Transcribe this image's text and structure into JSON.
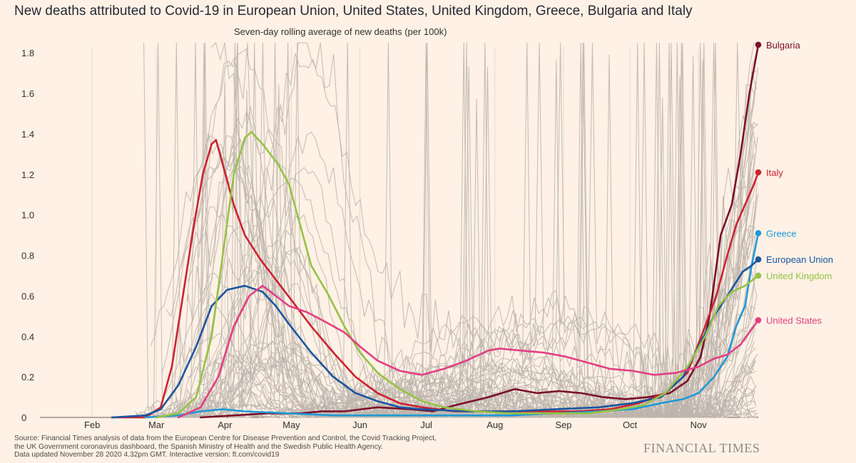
{
  "chart_data": {
    "type": "line",
    "title": "New deaths attributed to Covid-19 in European Union, United States, United Kingdom, Greece, Bulgaria and Italy",
    "subtitle": "Seven-day rolling average of new deaths (per 100k)",
    "xlabel": "",
    "ylabel": "",
    "x_ticks": [
      "Feb",
      "Mar",
      "Apr",
      "May",
      "Jun",
      "Jul",
      "Aug",
      "Sep",
      "Oct",
      "Nov"
    ],
    "x_tick_days": [
      31,
      60,
      91,
      121,
      152,
      182,
      213,
      244,
      274,
      305
    ],
    "x_range_days": [
      0,
      332
    ],
    "ylim": [
      0,
      1.85
    ],
    "y_ticks": [
      0,
      0.2,
      0.4,
      0.6,
      0.8,
      1.0,
      1.2,
      1.4,
      1.6,
      1.8
    ],
    "y_tick_labels": [
      "0",
      "0.2",
      "0.4",
      "0.6",
      "0.8",
      "1.0",
      "1.2",
      "1.4",
      "1.6",
      "1.8"
    ],
    "grid": "vertical",
    "legend": "end-of-line labels",
    "background_series_color": "#bdb5ad",
    "series": [
      {
        "name": "Bulgaria",
        "color": "#7a0f2b",
        "points": [
          [
            80,
            0
          ],
          [
            95,
            0.01
          ],
          [
            110,
            0.02
          ],
          [
            125,
            0.02
          ],
          [
            135,
            0.03
          ],
          [
            145,
            0.03
          ],
          [
            160,
            0.05
          ],
          [
            175,
            0.04
          ],
          [
            185,
            0.03
          ],
          [
            195,
            0.06
          ],
          [
            210,
            0.1
          ],
          [
            222,
            0.14
          ],
          [
            232,
            0.12
          ],
          [
            242,
            0.13
          ],
          [
            252,
            0.12
          ],
          [
            262,
            0.1
          ],
          [
            272,
            0.09
          ],
          [
            282,
            0.1
          ],
          [
            292,
            0.12
          ],
          [
            300,
            0.18
          ],
          [
            306,
            0.3
          ],
          [
            310,
            0.5
          ],
          [
            315,
            0.9
          ],
          [
            320,
            1.05
          ],
          [
            324,
            1.3
          ],
          [
            328,
            1.6
          ],
          [
            332,
            1.84
          ]
        ]
      },
      {
        "name": "Italy",
        "color": "#cc2231",
        "points": [
          [
            40,
            0
          ],
          [
            55,
            0
          ],
          [
            62,
            0.05
          ],
          [
            67,
            0.25
          ],
          [
            72,
            0.6
          ],
          [
            77,
            0.95
          ],
          [
            81,
            1.2
          ],
          [
            85,
            1.35
          ],
          [
            87,
            1.37
          ],
          [
            90,
            1.25
          ],
          [
            95,
            1.05
          ],
          [
            100,
            0.9
          ],
          [
            107,
            0.78
          ],
          [
            114,
            0.68
          ],
          [
            121,
            0.58
          ],
          [
            130,
            0.45
          ],
          [
            140,
            0.32
          ],
          [
            150,
            0.2
          ],
          [
            160,
            0.12
          ],
          [
            170,
            0.07
          ],
          [
            180,
            0.05
          ],
          [
            195,
            0.03
          ],
          [
            210,
            0.03
          ],
          [
            230,
            0.03
          ],
          [
            250,
            0.03
          ],
          [
            265,
            0.04
          ],
          [
            278,
            0.07
          ],
          [
            290,
            0.12
          ],
          [
            300,
            0.22
          ],
          [
            308,
            0.45
          ],
          [
            313,
            0.6
          ],
          [
            318,
            0.8
          ],
          [
            322,
            0.95
          ],
          [
            326,
            1.05
          ],
          [
            330,
            1.15
          ],
          [
            332,
            1.21
          ]
        ]
      },
      {
        "name": "Greece",
        "color": "#1d9ad6",
        "points": [
          [
            55,
            0
          ],
          [
            70,
            0.01
          ],
          [
            80,
            0.03
          ],
          [
            90,
            0.04
          ],
          [
            100,
            0.03
          ],
          [
            120,
            0.02
          ],
          [
            140,
            0.01
          ],
          [
            160,
            0.01
          ],
          [
            180,
            0.01
          ],
          [
            200,
            0.01
          ],
          [
            220,
            0.01
          ],
          [
            240,
            0.02
          ],
          [
            260,
            0.03
          ],
          [
            275,
            0.04
          ],
          [
            288,
            0.07
          ],
          [
            298,
            0.09
          ],
          [
            305,
            0.12
          ],
          [
            312,
            0.2
          ],
          [
            318,
            0.3
          ],
          [
            322,
            0.45
          ],
          [
            326,
            0.55
          ],
          [
            329,
            0.75
          ],
          [
            332,
            0.91
          ]
        ]
      },
      {
        "name": "European Union",
        "color": "#1b55a0",
        "points": [
          [
            40,
            0
          ],
          [
            55,
            0.01
          ],
          [
            62,
            0.04
          ],
          [
            70,
            0.16
          ],
          [
            78,
            0.35
          ],
          [
            85,
            0.55
          ],
          [
            92,
            0.63
          ],
          [
            100,
            0.65
          ],
          [
            108,
            0.62
          ],
          [
            114,
            0.55
          ],
          [
            120,
            0.46
          ],
          [
            130,
            0.32
          ],
          [
            140,
            0.2
          ],
          [
            150,
            0.12
          ],
          [
            160,
            0.08
          ],
          [
            170,
            0.05
          ],
          [
            180,
            0.04
          ],
          [
            200,
            0.03
          ],
          [
            220,
            0.03
          ],
          [
            240,
            0.04
          ],
          [
            260,
            0.05
          ],
          [
            275,
            0.07
          ],
          [
            288,
            0.1
          ],
          [
            298,
            0.2
          ],
          [
            305,
            0.35
          ],
          [
            312,
            0.5
          ],
          [
            318,
            0.6
          ],
          [
            325,
            0.72
          ],
          [
            329,
            0.75
          ],
          [
            332,
            0.78
          ]
        ]
      },
      {
        "name": "United Kingdom",
        "color": "#96c245",
        "points": [
          [
            60,
            0
          ],
          [
            70,
            0.02
          ],
          [
            78,
            0.1
          ],
          [
            85,
            0.4
          ],
          [
            90,
            0.8
          ],
          [
            95,
            1.2
          ],
          [
            100,
            1.38
          ],
          [
            103,
            1.41
          ],
          [
            108,
            1.35
          ],
          [
            115,
            1.25
          ],
          [
            120,
            1.15
          ],
          [
            125,
            0.95
          ],
          [
            130,
            0.75
          ],
          [
            138,
            0.6
          ],
          [
            145,
            0.45
          ],
          [
            152,
            0.32
          ],
          [
            160,
            0.22
          ],
          [
            170,
            0.14
          ],
          [
            180,
            0.08
          ],
          [
            190,
            0.05
          ],
          [
            205,
            0.03
          ],
          [
            220,
            0.02
          ],
          [
            240,
            0.02
          ],
          [
            255,
            0.02
          ],
          [
            270,
            0.04
          ],
          [
            280,
            0.06
          ],
          [
            290,
            0.12
          ],
          [
            300,
            0.25
          ],
          [
            308,
            0.4
          ],
          [
            314,
            0.55
          ],
          [
            320,
            0.62
          ],
          [
            326,
            0.65
          ],
          [
            332,
            0.7
          ]
        ]
      },
      {
        "name": "United States",
        "color": "#e23f83",
        "points": [
          [
            70,
            0
          ],
          [
            80,
            0.05
          ],
          [
            88,
            0.2
          ],
          [
            95,
            0.45
          ],
          [
            102,
            0.6
          ],
          [
            108,
            0.65
          ],
          [
            114,
            0.6
          ],
          [
            120,
            0.55
          ],
          [
            128,
            0.52
          ],
          [
            135,
            0.48
          ],
          [
            145,
            0.42
          ],
          [
            152,
            0.35
          ],
          [
            160,
            0.28
          ],
          [
            170,
            0.23
          ],
          [
            180,
            0.21
          ],
          [
            190,
            0.24
          ],
          [
            200,
            0.28
          ],
          [
            210,
            0.33
          ],
          [
            215,
            0.34
          ],
          [
            225,
            0.33
          ],
          [
            235,
            0.32
          ],
          [
            245,
            0.3
          ],
          [
            255,
            0.27
          ],
          [
            265,
            0.24
          ],
          [
            275,
            0.23
          ],
          [
            285,
            0.21
          ],
          [
            295,
            0.22
          ],
          [
            305,
            0.25
          ],
          [
            312,
            0.29
          ],
          [
            318,
            0.31
          ],
          [
            324,
            0.36
          ],
          [
            328,
            0.42
          ],
          [
            332,
            0.48
          ]
        ]
      }
    ]
  },
  "source": [
    "Source: Financial Times analysis of data from the European Centre for Disease Prevention and Control, the Covid Tracking Project,",
    "the UK Government coronavirus dashboard, the Spanish Ministry of Health and the Swedish Public Health Agency.",
    "Data updated November 28 2020 4.32pm GMT. Interactive version: ft.com/covid19"
  ],
  "brand": "FINANCIAL TIMES"
}
